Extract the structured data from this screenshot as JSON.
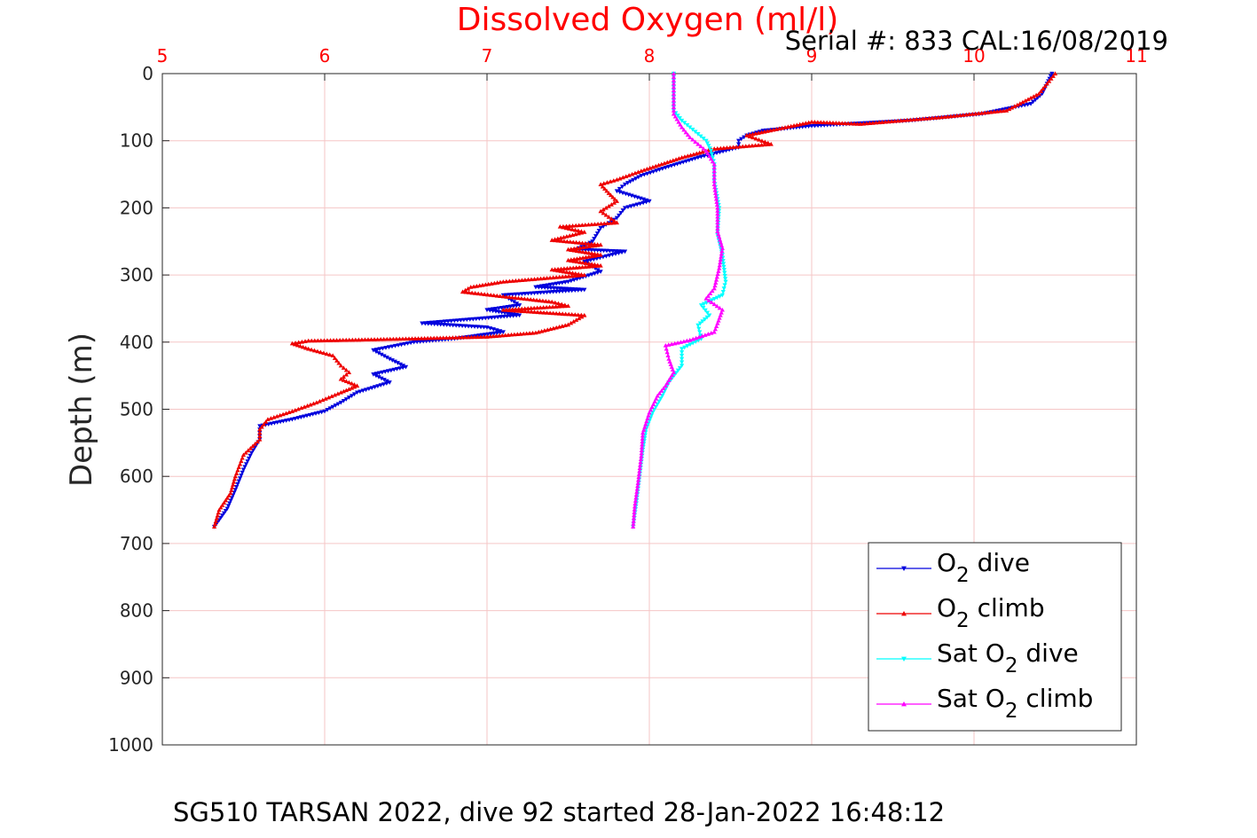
{
  "chart_data": {
    "type": "line",
    "title": "Dissolved Oxygen (ml/l)",
    "subtitle": "Serial #: 833  CAL:16/08/2019",
    "caption": "SG510 TARSAN 2022, dive 92 started 28-Jan-2022 16:48:12",
    "xlabel": "",
    "ylabel": "Depth (m)",
    "xlim": [
      5,
      11
    ],
    "ylim": [
      0,
      1000
    ],
    "y_reversed": true,
    "x_axis_position": "top",
    "xticks": [
      "5",
      "6",
      "7",
      "8",
      "9",
      "10",
      "11"
    ],
    "yticks": [
      "0",
      "100",
      "200",
      "300",
      "400",
      "500",
      "600",
      "700",
      "800",
      "900",
      "1000"
    ],
    "grid": true,
    "legend_position": "bottom-right",
    "legend": [
      {
        "prefix": "O",
        "sub": "2",
        "suffix": " dive"
      },
      {
        "prefix": "O",
        "sub": "2",
        "suffix": " climb"
      },
      {
        "prefix": "Sat O",
        "sub": "2",
        "suffix": " dive"
      },
      {
        "prefix": "Sat O",
        "sub": "2",
        "suffix": " climb"
      }
    ],
    "colors": {
      "title": "#ff0000",
      "xtick": "#ff0000",
      "grid": "#f5c6c6",
      "o2_dive": "#0000dd",
      "o2_climb": "#ee0000",
      "sat_dive": "#00ffff",
      "sat_climb": "#ff00ff"
    },
    "series": [
      {
        "name": "O2 dive",
        "marker": "triangle-down",
        "color": "#0000dd",
        "points": [
          [
            10.48,
            0
          ],
          [
            10.45,
            15
          ],
          [
            10.42,
            30
          ],
          [
            10.35,
            45
          ],
          [
            10.05,
            60
          ],
          [
            9.6,
            70
          ],
          [
            9.0,
            78
          ],
          [
            8.7,
            85
          ],
          [
            8.6,
            92
          ],
          [
            8.55,
            100
          ],
          [
            8.55,
            110
          ],
          [
            8.3,
            125
          ],
          [
            8.1,
            140
          ],
          [
            7.95,
            152
          ],
          [
            7.85,
            165
          ],
          [
            7.8,
            175
          ],
          [
            8.0,
            190
          ],
          [
            7.85,
            200
          ],
          [
            7.8,
            215
          ],
          [
            7.7,
            230
          ],
          [
            7.65,
            250
          ],
          [
            7.55,
            262
          ],
          [
            7.85,
            265
          ],
          [
            7.6,
            280
          ],
          [
            7.7,
            295
          ],
          [
            7.5,
            310
          ],
          [
            7.3,
            318
          ],
          [
            7.6,
            322
          ],
          [
            7.1,
            330
          ],
          [
            7.2,
            345
          ],
          [
            7.0,
            352
          ],
          [
            7.2,
            360
          ],
          [
            6.8,
            368
          ],
          [
            6.6,
            372
          ],
          [
            7.0,
            378
          ],
          [
            7.1,
            385
          ],
          [
            6.8,
            395
          ],
          [
            6.55,
            400
          ],
          [
            6.3,
            412
          ],
          [
            6.4,
            425
          ],
          [
            6.5,
            437
          ],
          [
            6.3,
            448
          ],
          [
            6.4,
            460
          ],
          [
            6.2,
            475
          ],
          [
            6.1,
            490
          ],
          [
            6.0,
            503
          ],
          [
            5.8,
            515
          ],
          [
            5.6,
            525
          ],
          [
            5.6,
            545
          ],
          [
            5.55,
            565
          ],
          [
            5.5,
            590
          ],
          [
            5.45,
            620
          ],
          [
            5.4,
            648
          ],
          [
            5.35,
            665
          ],
          [
            5.32,
            675
          ]
        ]
      },
      {
        "name": "O2 climb",
        "marker": "triangle-up",
        "color": "#ee0000",
        "points": [
          [
            10.5,
            0
          ],
          [
            10.4,
            30
          ],
          [
            10.2,
            55
          ],
          [
            9.8,
            65
          ],
          [
            9.3,
            75
          ],
          [
            9.0,
            72
          ],
          [
            8.8,
            82
          ],
          [
            8.6,
            92
          ],
          [
            8.75,
            105
          ],
          [
            8.4,
            112
          ],
          [
            8.2,
            125
          ],
          [
            7.95,
            145
          ],
          [
            7.8,
            158
          ],
          [
            7.7,
            165
          ],
          [
            7.75,
            178
          ],
          [
            7.8,
            190
          ],
          [
            7.7,
            205
          ],
          [
            7.8,
            222
          ],
          [
            7.45,
            228
          ],
          [
            7.6,
            236
          ],
          [
            7.4,
            248
          ],
          [
            7.7,
            255
          ],
          [
            7.5,
            262
          ],
          [
            7.7,
            270
          ],
          [
            7.5,
            278
          ],
          [
            7.7,
            286
          ],
          [
            7.4,
            292
          ],
          [
            7.6,
            300
          ],
          [
            7.1,
            310
          ],
          [
            6.9,
            318
          ],
          [
            6.85,
            325
          ],
          [
            7.1,
            332
          ],
          [
            7.4,
            340
          ],
          [
            7.5,
            346
          ],
          [
            7.1,
            352
          ],
          [
            7.6,
            360
          ],
          [
            7.5,
            374
          ],
          [
            7.3,
            386
          ],
          [
            7.0,
            392
          ],
          [
            6.5,
            395
          ],
          [
            5.9,
            398
          ],
          [
            5.8,
            402
          ],
          [
            5.9,
            410
          ],
          [
            6.05,
            420
          ],
          [
            6.1,
            435
          ],
          [
            6.15,
            445
          ],
          [
            6.1,
            455
          ],
          [
            6.2,
            465
          ],
          [
            6.1,
            475
          ],
          [
            5.95,
            490
          ],
          [
            5.8,
            503
          ],
          [
            5.65,
            515
          ],
          [
            5.6,
            530
          ],
          [
            5.6,
            545
          ],
          [
            5.5,
            568
          ],
          [
            5.45,
            600
          ],
          [
            5.42,
            625
          ],
          [
            5.35,
            650
          ],
          [
            5.32,
            675
          ]
        ]
      },
      {
        "name": "Sat O2 dive",
        "marker": "triangle-down",
        "color": "#00ffff",
        "points": [
          [
            8.15,
            0
          ],
          [
            8.15,
            30
          ],
          [
            8.15,
            55
          ],
          [
            8.2,
            70
          ],
          [
            8.25,
            80
          ],
          [
            8.3,
            90
          ],
          [
            8.35,
            100
          ],
          [
            8.38,
            115
          ],
          [
            8.4,
            135
          ],
          [
            8.4,
            160
          ],
          [
            8.43,
            200
          ],
          [
            8.42,
            240
          ],
          [
            8.45,
            270
          ],
          [
            8.47,
            310
          ],
          [
            8.45,
            330
          ],
          [
            8.32,
            345
          ],
          [
            8.37,
            360
          ],
          [
            8.3,
            375
          ],
          [
            8.32,
            395
          ],
          [
            8.2,
            410
          ],
          [
            8.2,
            435
          ],
          [
            8.12,
            460
          ],
          [
            8.08,
            480
          ],
          [
            8.02,
            505
          ],
          [
            7.98,
            530
          ],
          [
            7.96,
            560
          ],
          [
            7.94,
            600
          ],
          [
            7.92,
            640
          ],
          [
            7.9,
            675
          ]
        ]
      },
      {
        "name": "Sat O2 climb",
        "marker": "triangle-up",
        "color": "#ff00ff",
        "points": [
          [
            8.15,
            0
          ],
          [
            8.15,
            30
          ],
          [
            8.15,
            60
          ],
          [
            8.2,
            80
          ],
          [
            8.25,
            95
          ],
          [
            8.3,
            105
          ],
          [
            8.35,
            115
          ],
          [
            8.4,
            135
          ],
          [
            8.4,
            165
          ],
          [
            8.42,
            200
          ],
          [
            8.42,
            235
          ],
          [
            8.45,
            260
          ],
          [
            8.43,
            290
          ],
          [
            8.4,
            320
          ],
          [
            8.35,
            335
          ],
          [
            8.45,
            352
          ],
          [
            8.42,
            372
          ],
          [
            8.4,
            385
          ],
          [
            8.25,
            397
          ],
          [
            8.1,
            405
          ],
          [
            8.12,
            425
          ],
          [
            8.15,
            445
          ],
          [
            8.1,
            465
          ],
          [
            8.05,
            480
          ],
          [
            8.0,
            505
          ],
          [
            7.96,
            535
          ],
          [
            7.95,
            570
          ],
          [
            7.93,
            610
          ],
          [
            7.91,
            645
          ],
          [
            7.9,
            675
          ]
        ]
      }
    ]
  }
}
